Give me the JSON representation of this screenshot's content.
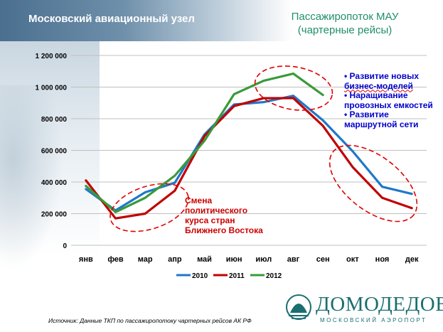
{
  "header": {
    "left_title": "Московский авиационный узел",
    "right_title_line1": "Пассажиропоток МАУ",
    "right_title_line2": "(чартерные рейсы)"
  },
  "notes": {
    "items": [
      "• Развитие новых",
      "бизнес-моделей",
      "• Наращивание",
      "провозных емкостей",
      "• Развитие",
      "маршрутной  сети"
    ]
  },
  "annotation": {
    "lines": [
      "Смена",
      "политического",
      "курса стран",
      "Ближнего Востока"
    ]
  },
  "source_text": "Источник: Данные ТКП по пассажиропотоку чартерных рейсов АК РФ",
  "logo": {
    "name": "ДОМОДЕДОВО",
    "subtitle": "МОСКОВСКИЙ АЭРОПОРТ"
  },
  "chart_data": {
    "type": "line",
    "categories": [
      "янв",
      "фев",
      "мар",
      "апр",
      "май",
      "июн",
      "июл",
      "авг",
      "сен",
      "окт",
      "ноя",
      "дек"
    ],
    "ylim": [
      0,
      1200000
    ],
    "yticks": [
      0,
      200000,
      400000,
      600000,
      800000,
      1000000,
      1200000
    ],
    "ytick_labels": [
      "0",
      "200 000",
      "400 000",
      "600 000",
      "800 000",
      "1 000 000",
      "1 200 000"
    ],
    "grid": true,
    "legend_position": "bottom",
    "series": [
      {
        "name": "2010",
        "color": "#1f78c8",
        "values": [
          355000,
          220000,
          335000,
          395000,
          700000,
          890000,
          905000,
          945000,
          790000,
          595000,
          370000,
          325000
        ]
      },
      {
        "name": "2011",
        "color": "#c00000",
        "values": [
          410000,
          170000,
          200000,
          345000,
          690000,
          880000,
          930000,
          930000,
          755000,
          495000,
          300000,
          235000
        ]
      },
      {
        "name": "2012",
        "color": "#3a9a3a",
        "values": [
          375000,
          210000,
          300000,
          440000,
          660000,
          955000,
          1040000,
          1085000,
          950000,
          null,
          null,
          null
        ]
      }
    ]
  },
  "colors": {
    "dash_ellipse": "#e00000",
    "note_text": "#0000cc",
    "annotation_text": "#cc0000",
    "title_right": "#1f8f6a"
  }
}
